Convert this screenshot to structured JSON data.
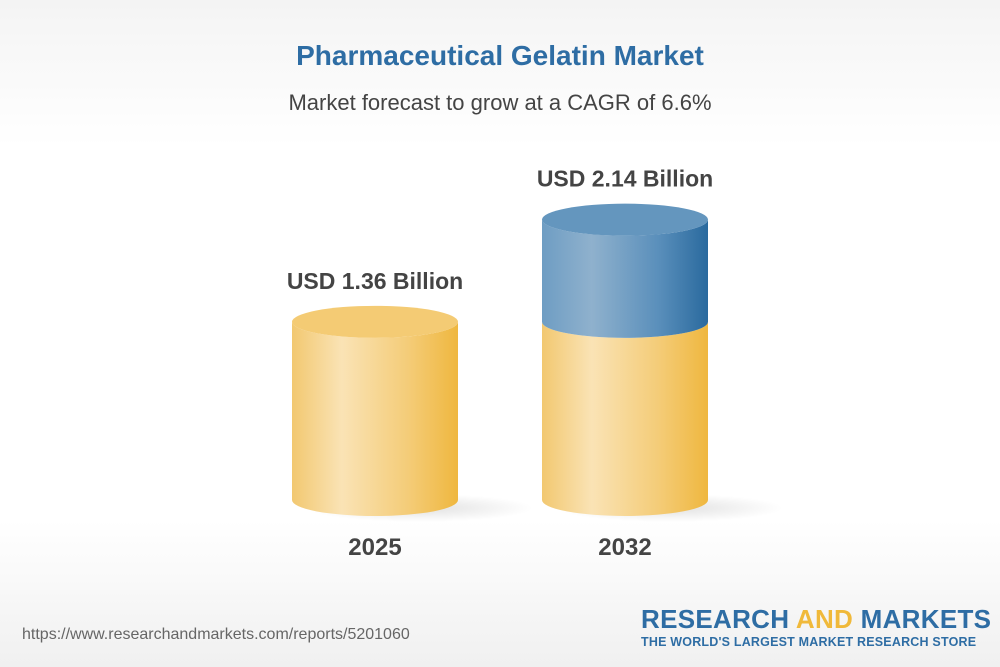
{
  "title": "Pharmaceutical Gelatin Market",
  "subtitle": "Market forecast to grow at a CAGR of 6.6%",
  "chart_data": {
    "type": "bar",
    "style": "3d-cylinder",
    "categories": [
      "2025",
      "2032"
    ],
    "values": [
      1.36,
      2.14
    ],
    "data_labels": [
      "USD 1.36 Billion",
      "USD 2.14 Billion"
    ],
    "unit": "USD Billion",
    "colors": {
      "base": "#f0b93a",
      "growth": "#2e6da4"
    },
    "grid": false
  },
  "footer": {
    "url": "https://www.researchandmarkets.com/reports/5201060",
    "logo_line1_a": "RESEARCH ",
    "logo_line1_b": "AND",
    "logo_line1_c": " MARKETS",
    "logo_line2": "THE WORLD'S LARGEST MARKET RESEARCH STORE"
  }
}
